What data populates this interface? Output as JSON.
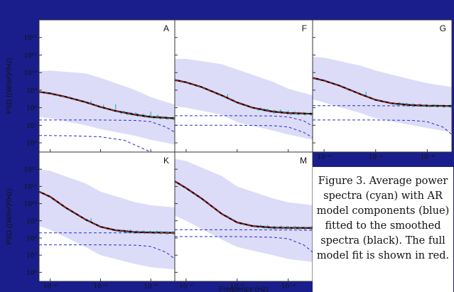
{
  "colors": {
    "background": "#1a1e8c",
    "envelope": "#dcdcf8",
    "psd_observed": "#19c2c2",
    "smoothed": "#000000",
    "model": "#e02020",
    "ar_components": "#2a2ad0"
  },
  "caption": "Figure 3. Average power spectra (cyan) with AR model components (blue) fitted to the smoothed spectra (black). The full model fit is shown in red.",
  "shared_axes": {
    "ylabel": "PSD  ((W/m²)²/Hz)",
    "xlabel": "Frequency (Hz)",
    "xscale": "log",
    "yscale": "log",
    "xlim": [
      6e-07,
      0.0003
    ],
    "ylim": [
      300000.0,
      10000000000000.0
    ],
    "xticks": [
      1e-06,
      1e-05,
      0.0001
    ],
    "xtick_labels": [
      "10⁻⁶",
      "10⁻⁵",
      "10⁻⁴"
    ],
    "yticks": [
      1000000.0,
      10000000.0,
      100000000.0,
      1000000000.0,
      10000000000.0,
      100000000000.0,
      1000000000000.0
    ],
    "ytick_labels": [
      "10⁶",
      "10⁷",
      "10⁸",
      "10⁹",
      "10¹⁰",
      "10¹¹",
      "10¹²"
    ]
  },
  "chart_data": [
    {
      "type": "line",
      "panel": "A",
      "series": [
        {
          "name": "component 1",
          "x": [
            6e-07,
            1e-06,
            3e-06,
            1e-05,
            3e-05,
            0.0001,
            0.0003
          ],
          "y": [
            2600000.0,
            2600000.0,
            2500000.0,
            2200000.0,
            1400000.0,
            300000.0,
            50000.0
          ]
        },
        {
          "name": "component 2",
          "x": [
            6e-07,
            1e-06,
            1e-05,
            5e-05,
            0.0001,
            0.0002,
            0.0003
          ],
          "y": [
            20000000.0,
            20000000.0,
            20000000.0,
            19000000.0,
            16000000.0,
            8000000.0,
            4000000.0
          ]
        },
        {
          "name": "full model",
          "x": [
            6e-07,
            1e-06,
            2e-06,
            5e-06,
            1e-05,
            2e-05,
            5e-05,
            0.0001,
            0.0003
          ],
          "y": [
            800000000.0,
            650000000.0,
            420000000.0,
            210000000.0,
            110000000.0,
            65000000.0,
            40000000.0,
            30000000.0,
            25000000.0
          ]
        },
        {
          "name": "envelope upper",
          "x": [
            6e-07,
            1e-06,
            5e-06,
            1e-05,
            5e-05,
            0.0001,
            0.0003
          ],
          "y": [
            12000000000.0,
            13000000000.0,
            9000000000.0,
            5000000000.0,
            1000000000.0,
            400000000.0,
            150000000.0
          ]
        },
        {
          "name": "envelope lower",
          "x": [
            6e-07,
            1e-06,
            5e-06,
            1e-05,
            5e-05,
            0.0001,
            0.0003
          ],
          "y": [
            30000000.0,
            25000000.0,
            10000000.0,
            6000000.0,
            2500000.0,
            1500000.0,
            800000.0
          ]
        },
        {
          "name": "peaks",
          "x": [
            6.5e-06,
            1.15e-05,
            2e-05,
            5e-05,
            0.0001,
            0.00014
          ],
          "y": [
            250000000.0,
            150000000.0,
            160000000.0,
            55000000.0,
            60000000.0,
            40000000.0
          ]
        }
      ]
    },
    {
      "type": "line",
      "panel": "F",
      "series": [
        {
          "name": "component 1",
          "x": [
            6e-07,
            1e-06,
            1e-05,
            5e-05,
            0.0001,
            0.0002,
            0.0003
          ],
          "y": [
            10000000.0,
            10000000.0,
            10000000.0,
            9500000.0,
            8000000.0,
            4000000.0,
            2000000.0
          ]
        },
        {
          "name": "component 2",
          "x": [
            6e-07,
            1e-06,
            1e-05,
            5e-05,
            0.0001,
            0.0002,
            0.0003
          ],
          "y": [
            35000000.0,
            35000000.0,
            35000000.0,
            34000000.0,
            30000000.0,
            18000000.0,
            9000000.0
          ]
        },
        {
          "name": "full model",
          "x": [
            6e-07,
            1e-06,
            2e-06,
            5e-06,
            1e-05,
            2e-05,
            5e-05,
            0.0001,
            0.0003
          ],
          "y": [
            3800000000.0,
            2800000000.0,
            1500000000.0,
            500000000.0,
            200000000.0,
            100000000.0,
            60000000.0,
            50000000.0,
            45000000.0
          ]
        },
        {
          "name": "envelope upper",
          "x": [
            6e-07,
            1e-06,
            5e-06,
            1e-05,
            5e-05,
            0.0001,
            0.0003
          ],
          "y": [
            60000000000.0,
            60000000000.0,
            30000000000.0,
            15000000000.0,
            3000000000.0,
            1200000000.0,
            500000000.0
          ]
        },
        {
          "name": "envelope lower",
          "x": [
            6e-07,
            1e-06,
            5e-06,
            1e-05,
            5e-05,
            0.0001,
            0.0003
          ],
          "y": [
            120000000.0,
            100000000.0,
            40000000.0,
            15000000.0,
            5000000.0,
            3000000.0,
            1500000.0
          ]
        },
        {
          "name": "peaks",
          "x": [
            6.5e-06,
            1.15e-05,
            7e-05,
            0.0001
          ],
          "y": [
            600000000.0,
            150000000.0,
            80000000.0,
            70000000.0
          ]
        }
      ]
    },
    {
      "type": "line",
      "panel": "G",
      "series": [
        {
          "name": "component 1",
          "x": [
            6e-07,
            1e-06,
            1e-05,
            5e-05,
            0.0001,
            0.0002,
            0.0003
          ],
          "y": [
            20000000.0,
            20000000.0,
            20000000.0,
            19000000.0,
            16000000.0,
            8000000.0,
            3000000.0
          ]
        },
        {
          "name": "component 2",
          "x": [
            6e-07,
            1e-06,
            1e-05,
            0.0001,
            0.0003
          ],
          "y": [
            130000000.0,
            130000000.0,
            130000000.0,
            125000000.0,
            120000000.0
          ]
        },
        {
          "name": "full model",
          "x": [
            6e-07,
            1e-06,
            2e-06,
            5e-06,
            1e-05,
            2e-05,
            5e-05,
            0.0001,
            0.0003
          ],
          "y": [
            5000000000.0,
            3500000000.0,
            1800000000.0,
            600000000.0,
            280000000.0,
            180000000.0,
            140000000.0,
            130000000.0,
            125000000.0
          ]
        },
        {
          "name": "envelope upper",
          "x": [
            6e-07,
            1e-06,
            5e-06,
            1e-05,
            5e-05,
            0.0001,
            0.0003
          ],
          "y": [
            80000000000.0,
            70000000000.0,
            25000000000.0,
            13000000000.0,
            4000000000.0,
            2500000000.0,
            1500000000.0
          ]
        },
        {
          "name": "envelope lower",
          "x": [
            6e-07,
            1e-06,
            5e-06,
            1e-05,
            5e-05,
            0.0001,
            0.0003
          ],
          "y": [
            300000000.0,
            200000000.0,
            50000000.0,
            25000000.0,
            10000000.0,
            7000000.0,
            4000000.0
          ]
        },
        {
          "name": "peaks",
          "x": [
            6.5e-06,
            1.15e-05,
            1.4e-05
          ],
          "y": [
            800000000.0,
            250000000.0,
            200000000.0
          ]
        }
      ]
    },
    {
      "type": "line",
      "panel": "K",
      "series": [
        {
          "name": "component 1",
          "x": [
            6e-07,
            1e-06,
            1e-05,
            5e-05,
            0.0001,
            0.0002,
            0.0003
          ],
          "y": [
            40000000.0,
            40000000.0,
            40000000.0,
            38000000.0,
            32000000.0,
            15000000.0,
            6000000.0
          ]
        },
        {
          "name": "component 2",
          "x": [
            6e-07,
            1e-06,
            1e-05,
            0.0001,
            0.0003
          ],
          "y": [
            200000000.0,
            200000000.0,
            200000000.0,
            195000000.0,
            190000000.0
          ]
        },
        {
          "name": "full model",
          "x": [
            6e-07,
            1e-06,
            2e-06,
            5e-06,
            1e-05,
            2e-05,
            5e-05,
            0.0001,
            0.0003
          ],
          "y": [
            50000000000.0,
            25000000000.0,
            6000000000.0,
            1200000000.0,
            450000000.0,
            280000000.0,
            220000000.0,
            210000000.0,
            200000000.0
          ]
        },
        {
          "name": "envelope upper",
          "x": [
            6e-07,
            1e-06,
            5e-06,
            1e-05,
            5e-05,
            0.0001,
            0.0003
          ],
          "y": [
            1000000000000.0,
            800000000000.0,
            150000000000.0,
            50000000000.0,
            12000000000.0,
            8000000000.0,
            6000000000.0
          ]
        },
        {
          "name": "envelope lower",
          "x": [
            6e-07,
            1e-06,
            5e-06,
            1e-05,
            5e-05,
            0.0001,
            0.0003
          ],
          "y": [
            500000000.0,
            300000000.0,
            30000000.0,
            10000000.0,
            3000000.0,
            2000000.0,
            1500000.0
          ]
        },
        {
          "name": "peaks",
          "x": [
            6.5e-06,
            1.15e-05
          ],
          "y": [
            1400000000.0,
            400000000.0
          ]
        }
      ]
    },
    {
      "type": "line",
      "panel": "M",
      "series": [
        {
          "name": "component 1",
          "x": [
            6e-07,
            1e-06,
            1e-05,
            5e-05,
            0.0001,
            0.0002,
            0.0003
          ],
          "y": [
            120000000.0,
            120000000.0,
            120000000.0,
            110000000.0,
            90000000.0,
            40000000.0,
            15000000.0
          ]
        },
        {
          "name": "component 2",
          "x": [
            6e-07,
            1e-06,
            1e-05,
            0.0001,
            0.0003
          ],
          "y": [
            300000000.0,
            300000000.0,
            300000000.0,
            290000000.0,
            280000000.0
          ]
        },
        {
          "name": "full model",
          "x": [
            6e-07,
            1e-06,
            2e-06,
            5e-06,
            1e-05,
            2e-05,
            5e-05,
            0.0001,
            0.0003
          ],
          "y": [
            200000000000.0,
            80000000000.0,
            20000000000.0,
            2500000000.0,
            800000000.0,
            500000000.0,
            400000000.0,
            390000000.0,
            380000000.0
          ]
        },
        {
          "name": "envelope upper",
          "x": [
            6e-07,
            1e-06,
            5e-06,
            1e-05,
            5e-05,
            0.0001,
            0.0003
          ],
          "y": [
            4000000000000.0,
            3000000000000.0,
            400000000000.0,
            100000000000.0,
            20000000000.0,
            12000000000.0,
            8000000000.0
          ]
        },
        {
          "name": "envelope lower",
          "x": [
            6e-07,
            1e-06,
            5e-06,
            1e-05,
            5e-05,
            0.0001,
            0.0003
          ],
          "y": [
            2000000000.0,
            1000000000.0,
            80000000.0,
            30000000.0,
            10000000.0,
            6000000.0,
            4000000.0
          ]
        },
        {
          "name": "peaks",
          "x": [
            6.5e-06,
            1.15e-05
          ],
          "y": [
            2000000000.0,
            600000000.0
          ]
        }
      ]
    }
  ]
}
